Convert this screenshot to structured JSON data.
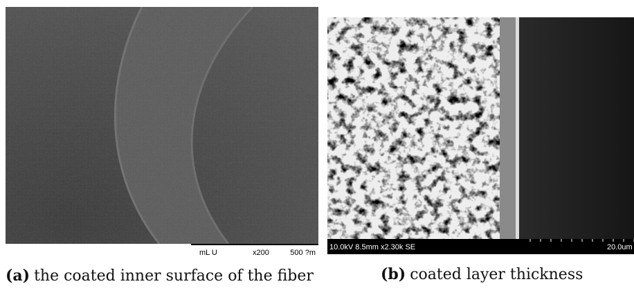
{
  "panels": [
    {
      "label": "(a)",
      "caption": "the coated inner surface of the fiber",
      "overlay": [
        "mL U",
        "x200",
        "500 ?m"
      ]
    },
    {
      "label": "(b)",
      "caption": "coated layer thickness",
      "overlay": [
        "10.0kV 8.5mm x2.30k SE",
        "20.0um"
      ]
    }
  ]
}
